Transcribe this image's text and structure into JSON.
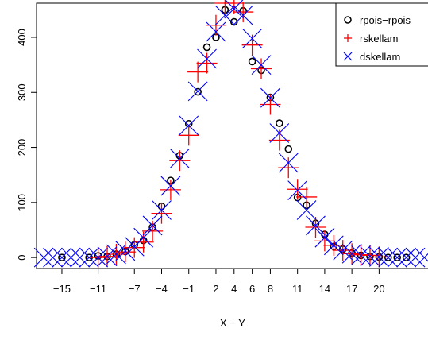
{
  "chart_data": {
    "type": "scatter",
    "title": "",
    "xlabel": "X − Y",
    "ylabel": "",
    "xlim": [
      -17.8,
      25.4
    ],
    "ylim": [
      -20,
      462
    ],
    "grid": false,
    "legend_position": "top-right",
    "x_ticks": [
      -15,
      -11,
      -7,
      -4,
      -1,
      2,
      4,
      6,
      8,
      11,
      14,
      17,
      20
    ],
    "x_tick_labels": [
      "−15",
      "−11",
      "−7",
      "−4",
      "−1",
      "2",
      "4",
      "6",
      "8",
      "11",
      "14",
      "17",
      "20"
    ],
    "y_ticks": [
      0,
      100,
      200,
      300,
      400
    ],
    "y_tick_labels": [
      "0",
      "100",
      "200",
      "300",
      "400"
    ],
    "series": [
      {
        "name": "rpois−rpois",
        "marker": "circle",
        "color": "#000000",
        "points": [
          [
            -15,
            0
          ],
          [
            -12,
            0
          ],
          [
            -11,
            3
          ],
          [
            -10,
            2
          ],
          [
            -9,
            6
          ],
          [
            -8,
            11
          ],
          [
            -7,
            23
          ],
          [
            -6,
            31
          ],
          [
            -5,
            55
          ],
          [
            -4,
            93
          ],
          [
            -3,
            140
          ],
          [
            -2,
            185
          ],
          [
            -1,
            243
          ],
          [
            0,
            301
          ],
          [
            1,
            382
          ],
          [
            2,
            400
          ],
          [
            3,
            450
          ],
          [
            4,
            428
          ],
          [
            5,
            448
          ],
          [
            6,
            356
          ],
          [
            7,
            340
          ],
          [
            8,
            291
          ],
          [
            9,
            244
          ],
          [
            10,
            197
          ],
          [
            11,
            109
          ],
          [
            12,
            95
          ],
          [
            13,
            62
          ],
          [
            14,
            42
          ],
          [
            15,
            20
          ],
          [
            16,
            15
          ],
          [
            17,
            8
          ],
          [
            18,
            4
          ],
          [
            19,
            2
          ],
          [
            20,
            1
          ],
          [
            21,
            0
          ],
          [
            22,
            0
          ],
          [
            23,
            0
          ]
        ]
      },
      {
        "name": "rskellam",
        "marker": "plus",
        "color": "#ff0000",
        "points": [
          [
            -11,
            0
          ],
          [
            -10,
            2
          ],
          [
            -9,
            6
          ],
          [
            -8,
            10
          ],
          [
            -7,
            18
          ],
          [
            -6,
            28
          ],
          [
            -5,
            48
          ],
          [
            -4,
            80
          ],
          [
            -3,
            123
          ],
          [
            -2,
            176
          ],
          [
            -1,
            222
          ],
          [
            0,
            337
          ],
          [
            1,
            353
          ],
          [
            2,
            422
          ],
          [
            3,
            462
          ],
          [
            4,
            462
          ],
          [
            5,
            446
          ],
          [
            6,
            386
          ],
          [
            7,
            343
          ],
          [
            8,
            278
          ],
          [
            9,
            213
          ],
          [
            10,
            163
          ],
          [
            11,
            124
          ],
          [
            12,
            110
          ],
          [
            13,
            55
          ],
          [
            14,
            30
          ],
          [
            15,
            22
          ],
          [
            16,
            13
          ],
          [
            17,
            7
          ],
          [
            18,
            5
          ],
          [
            19,
            4
          ],
          [
            20,
            1
          ]
        ]
      },
      {
        "name": "dskellam",
        "marker": "cross",
        "color": "#0000ff",
        "points": [
          [
            -17,
            0
          ],
          [
            -16,
            0
          ],
          [
            -15,
            0
          ],
          [
            -14,
            0
          ],
          [
            -13,
            0
          ],
          [
            -12,
            0
          ],
          [
            -11,
            0
          ],
          [
            -10,
            2
          ],
          [
            -9,
            6
          ],
          [
            -8,
            12
          ],
          [
            -7,
            20
          ],
          [
            -6,
            36
          ],
          [
            -5,
            58
          ],
          [
            -4,
            86
          ],
          [
            -3,
            130
          ],
          [
            -2,
            180
          ],
          [
            -1,
            240
          ],
          [
            0,
            302
          ],
          [
            1,
            361
          ],
          [
            2,
            410
          ],
          [
            3,
            440
          ],
          [
            4,
            452
          ],
          [
            5,
            440
          ],
          [
            6,
            398
          ],
          [
            7,
            350
          ],
          [
            8,
            290
          ],
          [
            9,
            226
          ],
          [
            10,
            172
          ],
          [
            11,
            122
          ],
          [
            12,
            86
          ],
          [
            13,
            58
          ],
          [
            14,
            36
          ],
          [
            15,
            22
          ],
          [
            16,
            13
          ],
          [
            17,
            7
          ],
          [
            18,
            4
          ],
          [
            19,
            2
          ],
          [
            20,
            1
          ],
          [
            21,
            0
          ],
          [
            22,
            0
          ],
          [
            23,
            0
          ],
          [
            24,
            0
          ],
          [
            25,
            0
          ]
        ]
      }
    ]
  }
}
